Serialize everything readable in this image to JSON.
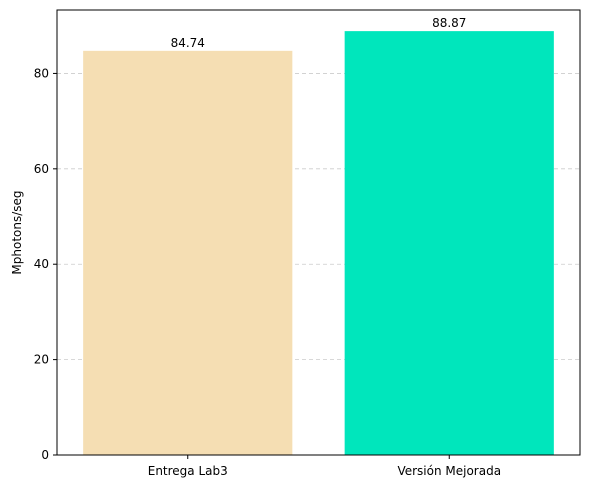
{
  "chart_data": {
    "type": "bar",
    "title": "",
    "xlabel": "",
    "ylabel": "Mphotons/seg",
    "categories": [
      "Entrega Lab3",
      "Versión Mejorada"
    ],
    "values": [
      84.74,
      88.87
    ],
    "value_labels": [
      "84.74",
      "88.87"
    ],
    "colors": [
      "#f5deb3",
      "#00e6bc"
    ],
    "ylim": [
      0,
      93.3
    ],
    "yticks": [
      0,
      20,
      40,
      60,
      80
    ],
    "grid": "y-dashed",
    "legend": "none"
  }
}
